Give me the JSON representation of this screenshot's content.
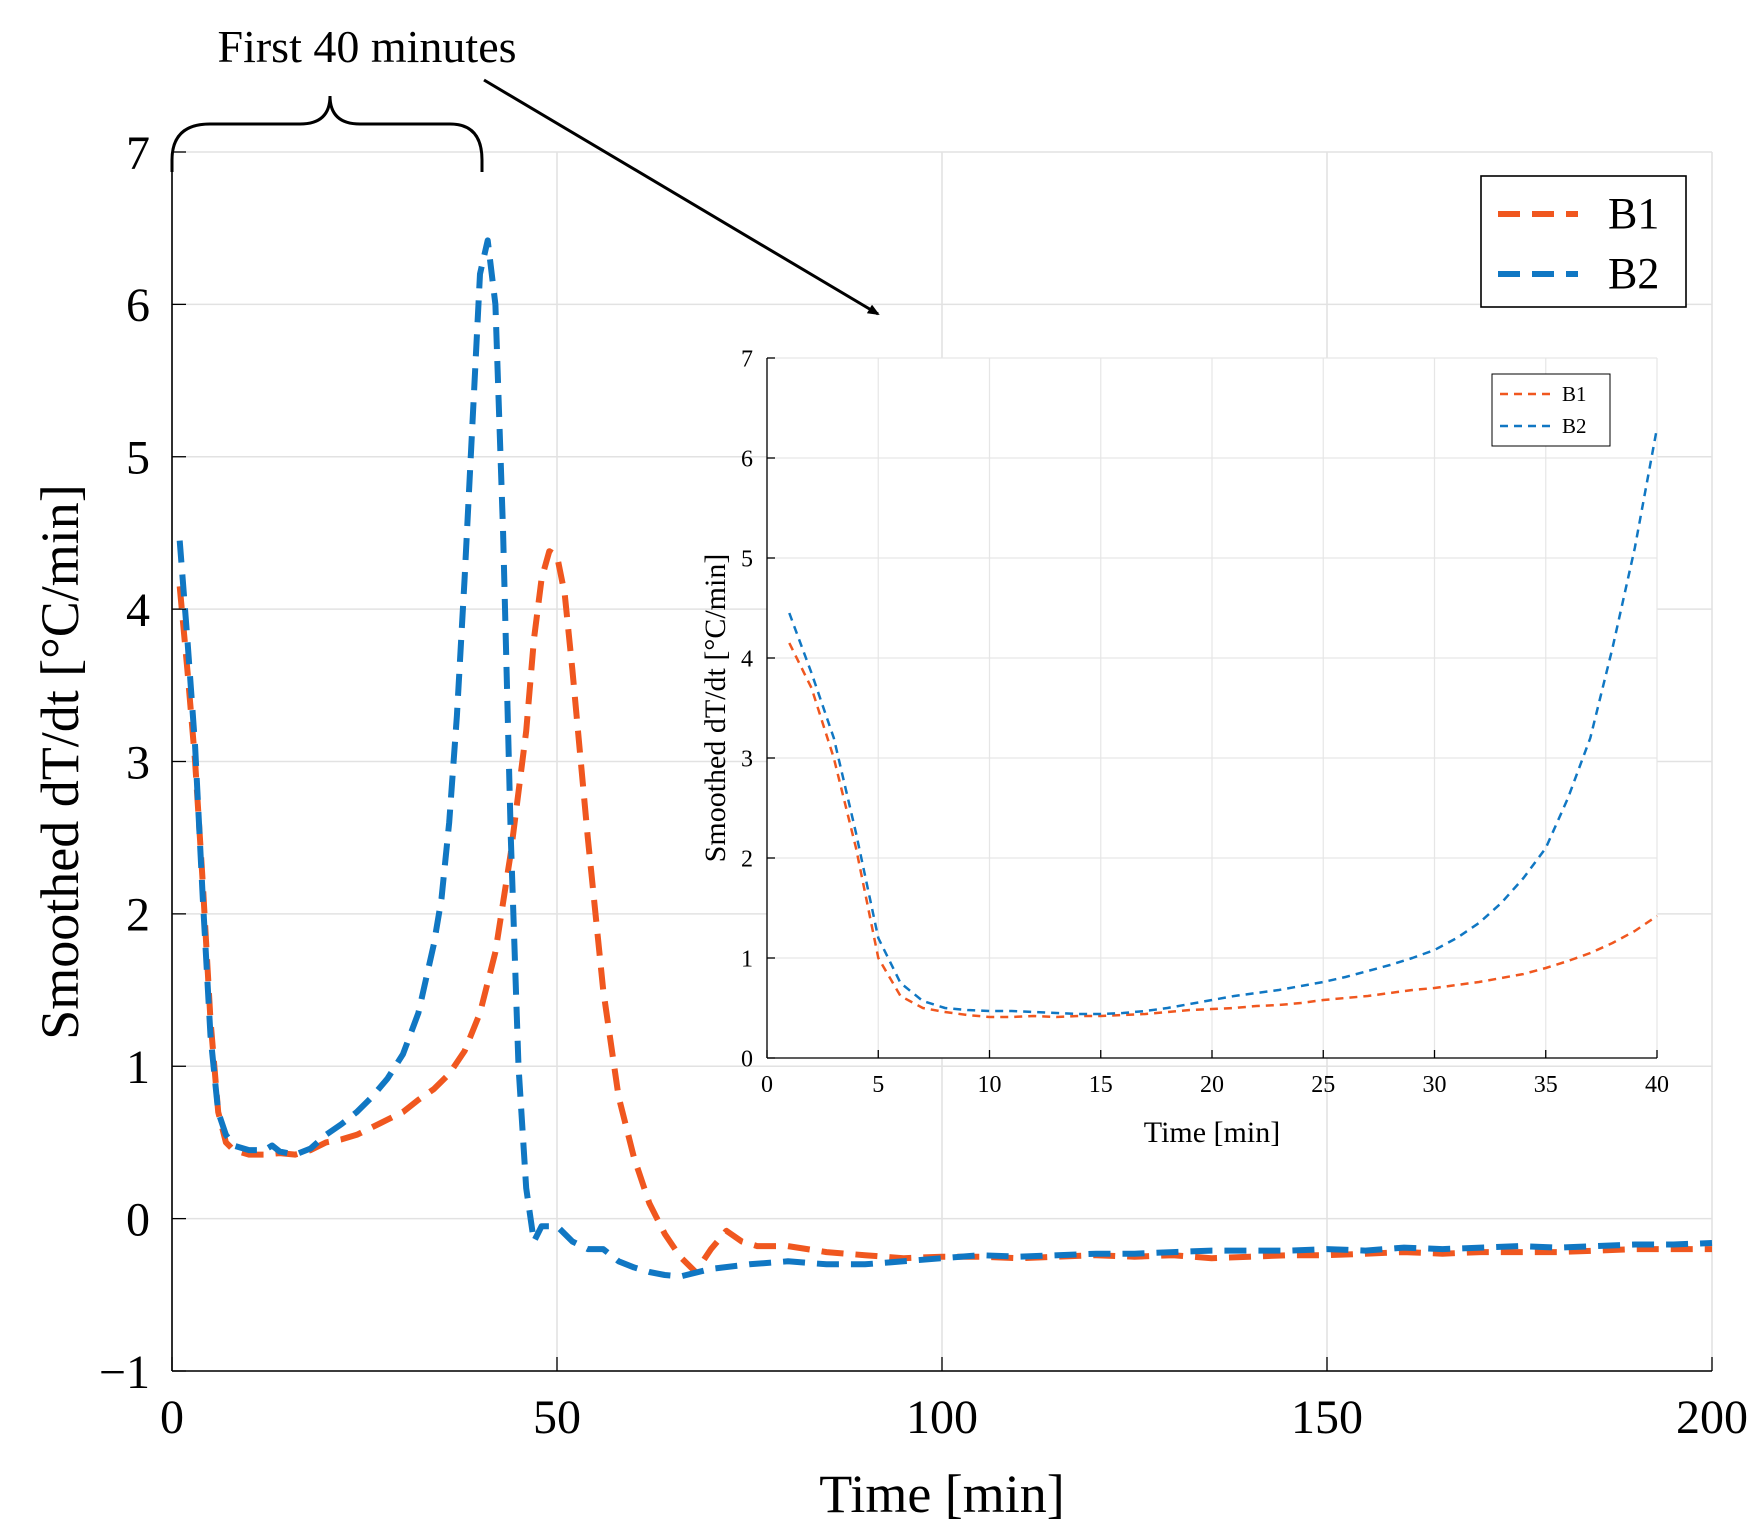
{
  "annotation": {
    "label": "First 40 minutes"
  },
  "colors": {
    "B1": "#f0571f",
    "B2": "#1077c3",
    "arrow": "#000000"
  },
  "chart_data": [
    {
      "name": "main",
      "type": "line",
      "title": "",
      "xlabel": "Time [min]",
      "ylabel": "Smoothed dT/dt [°C/min]",
      "xlim": [
        0,
        200
      ],
      "ylim": [
        -1,
        7
      ],
      "xticks": [
        0,
        50,
        100,
        150,
        200
      ],
      "yticks": [
        -1,
        0,
        1,
        2,
        3,
        4,
        5,
        6,
        7
      ],
      "grid": true,
      "legend_position": "top-right",
      "series": [
        {
          "name": "B1",
          "x": [
            1,
            2,
            3,
            4,
            5,
            6,
            7,
            8,
            10,
            12,
            14,
            16,
            18,
            20,
            22,
            24,
            26,
            28,
            30,
            32,
            34,
            36,
            38,
            40,
            42,
            44,
            46,
            47,
            48,
            49,
            50,
            51,
            52,
            54,
            56,
            58,
            60,
            62,
            64,
            66,
            68,
            70,
            72,
            74,
            76,
            80,
            85,
            90,
            95,
            100,
            105,
            110,
            115,
            120,
            125,
            130,
            135,
            140,
            145,
            150,
            155,
            160,
            165,
            170,
            175,
            180,
            185,
            190,
            195,
            200
          ],
          "y": [
            4.15,
            3.6,
            3.0,
            2.2,
            1.3,
            0.7,
            0.5,
            0.45,
            0.42,
            0.42,
            0.43,
            0.42,
            0.45,
            0.5,
            0.52,
            0.55,
            0.6,
            0.65,
            0.7,
            0.78,
            0.85,
            0.95,
            1.1,
            1.35,
            1.75,
            2.4,
            3.2,
            3.8,
            4.2,
            4.38,
            4.35,
            4.1,
            3.6,
            2.5,
            1.5,
            0.8,
            0.4,
            0.1,
            -0.1,
            -0.25,
            -0.35,
            -0.2,
            -0.08,
            -0.15,
            -0.18,
            -0.18,
            -0.22,
            -0.24,
            -0.26,
            -0.25,
            -0.25,
            -0.26,
            -0.25,
            -0.24,
            -0.25,
            -0.24,
            -0.26,
            -0.25,
            -0.24,
            -0.24,
            -0.23,
            -0.22,
            -0.23,
            -0.22,
            -0.22,
            -0.22,
            -0.21,
            -0.2,
            -0.2,
            -0.2
          ]
        },
        {
          "name": "B2",
          "x": [
            1,
            2,
            3,
            4,
            5,
            6,
            7,
            8,
            10,
            12,
            13,
            14,
            16,
            18,
            20,
            22,
            24,
            26,
            28,
            30,
            32,
            34,
            35,
            36,
            37,
            38,
            39,
            40,
            41,
            42,
            43,
            44,
            45,
            46,
            47,
            48,
            50,
            52,
            54,
            56,
            58,
            60,
            62,
            64,
            66,
            70,
            75,
            80,
            85,
            90,
            95,
            100,
            105,
            110,
            115,
            120,
            125,
            130,
            135,
            140,
            145,
            150,
            155,
            160,
            165,
            170,
            175,
            180,
            185,
            190,
            195,
            200
          ],
          "y": [
            4.45,
            3.8,
            3.1,
            2.1,
            1.2,
            0.7,
            0.55,
            0.48,
            0.45,
            0.45,
            0.48,
            0.44,
            0.42,
            0.46,
            0.55,
            0.62,
            0.7,
            0.8,
            0.92,
            1.08,
            1.35,
            1.8,
            2.1,
            2.6,
            3.3,
            4.2,
            5.2,
            6.2,
            6.42,
            6.0,
            4.5,
            2.5,
            1.0,
            0.2,
            -0.15,
            -0.05,
            -0.05,
            -0.15,
            -0.2,
            -0.2,
            -0.28,
            -0.32,
            -0.35,
            -0.37,
            -0.38,
            -0.33,
            -0.3,
            -0.28,
            -0.3,
            -0.3,
            -0.28,
            -0.26,
            -0.24,
            -0.25,
            -0.24,
            -0.23,
            -0.23,
            -0.22,
            -0.21,
            -0.21,
            -0.21,
            -0.2,
            -0.21,
            -0.19,
            -0.2,
            -0.19,
            -0.18,
            -0.19,
            -0.18,
            -0.17,
            -0.17,
            -0.16
          ]
        }
      ]
    },
    {
      "name": "inset",
      "type": "line",
      "title": "",
      "xlabel": "Time [min]",
      "ylabel": "Smoothed dT/dt [°C/min]",
      "xlim": [
        0,
        40
      ],
      "ylim": [
        0,
        7
      ],
      "xticks": [
        0,
        5,
        10,
        15,
        20,
        25,
        30,
        35,
        40
      ],
      "yticks": [
        0,
        1,
        2,
        3,
        4,
        5,
        6,
        7
      ],
      "grid": true,
      "legend_position": "top-right",
      "series": [
        {
          "name": "B1",
          "x": [
            1,
            2,
            3,
            4,
            5,
            6,
            7,
            8,
            9,
            10,
            11,
            12,
            13,
            14,
            15,
            16,
            17,
            18,
            19,
            20,
            21,
            22,
            23,
            24,
            25,
            26,
            27,
            28,
            29,
            30,
            31,
            32,
            33,
            34,
            35,
            36,
            37,
            38,
            39,
            40
          ],
          "y": [
            4.15,
            3.7,
            3.0,
            2.1,
            1.0,
            0.62,
            0.5,
            0.46,
            0.43,
            0.41,
            0.41,
            0.42,
            0.41,
            0.42,
            0.42,
            0.43,
            0.44,
            0.46,
            0.48,
            0.49,
            0.5,
            0.52,
            0.53,
            0.55,
            0.58,
            0.6,
            0.62,
            0.65,
            0.68,
            0.7,
            0.73,
            0.76,
            0.8,
            0.84,
            0.9,
            0.97,
            1.05,
            1.15,
            1.27,
            1.42
          ]
        },
        {
          "name": "B2",
          "x": [
            1,
            2,
            3,
            4,
            5,
            6,
            7,
            8,
            9,
            10,
            11,
            12,
            13,
            14,
            15,
            16,
            17,
            18,
            19,
            20,
            21,
            22,
            23,
            24,
            25,
            26,
            27,
            28,
            29,
            30,
            31,
            32,
            33,
            34,
            35,
            36,
            37,
            38,
            39,
            40
          ],
          "y": [
            4.45,
            3.85,
            3.2,
            2.25,
            1.2,
            0.75,
            0.57,
            0.5,
            0.48,
            0.47,
            0.47,
            0.46,
            0.45,
            0.44,
            0.44,
            0.45,
            0.47,
            0.5,
            0.54,
            0.58,
            0.62,
            0.65,
            0.68,
            0.72,
            0.76,
            0.81,
            0.87,
            0.93,
            1.0,
            1.08,
            1.2,
            1.35,
            1.55,
            1.8,
            2.1,
            2.6,
            3.2,
            4.1,
            5.1,
            6.3
          ]
        }
      ]
    }
  ]
}
